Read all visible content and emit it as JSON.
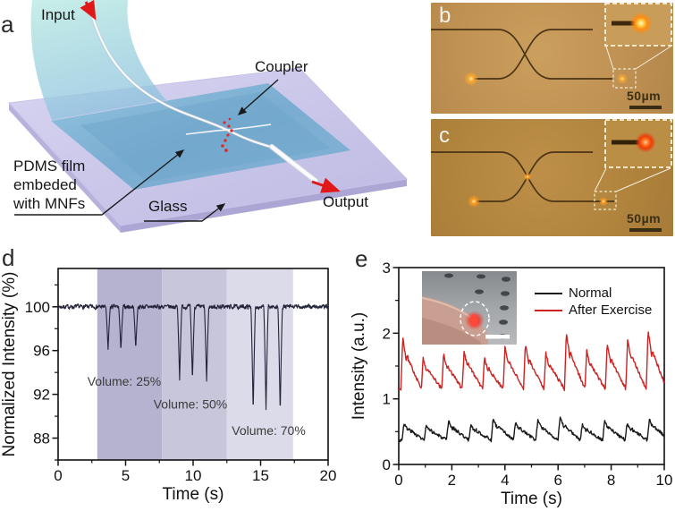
{
  "panels": {
    "a": {
      "letter": "a",
      "input": "Input",
      "coupler": "Coupler",
      "pdms": [
        "PDMS film",
        "embeded",
        "with MNFs"
      ],
      "glass": "Glass",
      "output": "Output"
    },
    "b": {
      "letter": "b",
      "scale_bar": "50µm"
    },
    "c": {
      "letter": "c",
      "scale_bar": "50µm"
    },
    "d": {
      "letter": "d"
    },
    "e": {
      "letter": "e"
    }
  },
  "chart_data": [
    {
      "panel": "d",
      "type": "line",
      "xlabel": "Time (s)",
      "ylabel": "Normalized Intensity (%)",
      "xlim": [
        0,
        20
      ],
      "ylim": [
        86,
        103.5
      ],
      "x_ticks": [
        0,
        5,
        10,
        15,
        20
      ],
      "x_minor_step": 2.5,
      "y_ticks": [
        88,
        92,
        96,
        100
      ],
      "y_minor_step": 2,
      "grid": false,
      "line_color": "#23233a",
      "baseline": 100,
      "noise_amplitude": 0.3,
      "shaded_regions": [
        {
          "x_start": 2.9,
          "x_end": 7.7,
          "color": "#b6b3d0",
          "label": "Volume: 25%",
          "label_x": 4.9,
          "label_y": 92.8
        },
        {
          "x_start": 7.7,
          "x_end": 12.5,
          "color": "#c8c6db",
          "label": "Volume: 50%",
          "label_x": 9.8,
          "label_y": 90.7
        },
        {
          "x_start": 12.5,
          "x_end": 17.4,
          "color": "#dcdbe9",
          "label": "Volume: 70%",
          "label_x": 15.6,
          "label_y": 88.3
        }
      ],
      "dips": [
        {
          "t": 3.7,
          "min": 96.1
        },
        {
          "t": 4.65,
          "min": 96.0
        },
        {
          "t": 5.75,
          "min": 96.2
        },
        {
          "t": 9.0,
          "min": 93.3
        },
        {
          "t": 9.95,
          "min": 93.3
        },
        {
          "t": 11.0,
          "min": 93.2
        },
        {
          "t": 14.45,
          "min": 90.4
        },
        {
          "t": 15.4,
          "min": 90.6
        },
        {
          "t": 16.45,
          "min": 90.3
        }
      ]
    },
    {
      "panel": "e",
      "type": "line",
      "xlabel": "Time (s)",
      "ylabel": "Intensity (a.u.)",
      "xlim": [
        0,
        10
      ],
      "ylim": [
        0,
        3
      ],
      "x_ticks": [
        0,
        2,
        4,
        6,
        8,
        10
      ],
      "x_minor_step": 1,
      "y_ticks": [
        0,
        1,
        2,
        3
      ],
      "y_minor_step": 0.5,
      "grid": false,
      "legend": [
        {
          "label": "Normal",
          "color": "#1a1a1a"
        },
        {
          "label": "After Exercise",
          "color": "#cc2222"
        }
      ],
      "series": [
        {
          "name": "Normal",
          "color": "#1a1a1a",
          "baseline": 0.37,
          "period": 0.84,
          "pulse_times": [
            0.12,
            0.96,
            1.8,
            2.64,
            3.48,
            4.32,
            5.16,
            6.0,
            6.84,
            7.68,
            8.52,
            9.36
          ],
          "pulse_peaks": [
            0.63,
            0.59,
            0.66,
            0.61,
            0.7,
            0.64,
            0.67,
            0.71,
            0.62,
            0.66,
            0.63,
            0.69
          ]
        },
        {
          "name": "After Exercise",
          "color": "#cc2222",
          "baseline": 1.15,
          "period": 0.77,
          "pulse_times": [
            0.08,
            0.85,
            1.62,
            2.39,
            3.16,
            3.93,
            4.7,
            5.47,
            6.24,
            7.01,
            7.78,
            8.55,
            9.32
          ],
          "pulse_peaks": [
            1.93,
            1.62,
            1.68,
            1.73,
            1.62,
            1.79,
            1.82,
            1.7,
            2.0,
            1.73,
            1.83,
            1.92,
            2.05
          ]
        }
      ]
    }
  ]
}
